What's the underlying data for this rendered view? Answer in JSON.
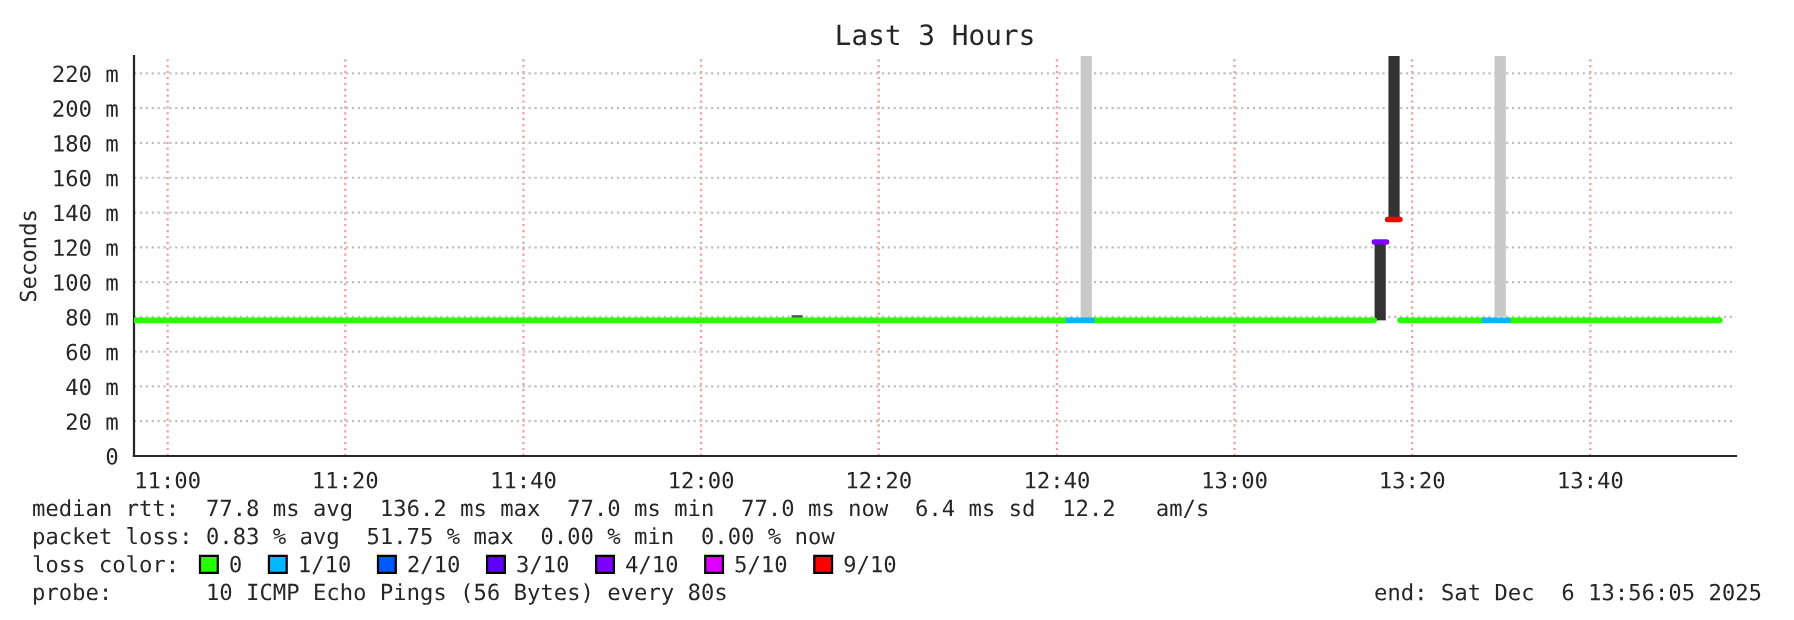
{
  "chart_data": {
    "type": "line",
    "title": "Last 3 Hours",
    "ylabel": "Seconds",
    "xlim": [
      10.937,
      13.94
    ],
    "ylim": [
      0,
      230
    ],
    "xticks": [
      {
        "value": 11,
        "label": "11:00"
      },
      {
        "value": 11.333,
        "label": "11:20"
      },
      {
        "value": 11.667,
        "label": "11:40"
      },
      {
        "value": 12,
        "label": "12:00"
      },
      {
        "value": 12.333,
        "label": "12:20"
      },
      {
        "value": 12.667,
        "label": "12:40"
      },
      {
        "value": 13,
        "label": "13:00"
      },
      {
        "value": 13.333,
        "label": "13:20"
      },
      {
        "value": 13.667,
        "label": "13:40"
      }
    ],
    "yticks": [
      0,
      {
        "value": 20,
        "label": "20 m"
      },
      {
        "value": 40,
        "label": "40 m"
      },
      {
        "value": 60,
        "label": "60 m"
      },
      {
        "value": 80,
        "label": "80 m"
      },
      {
        "value": 100,
        "label": "100 m"
      },
      {
        "value": 120,
        "label": "120 m"
      },
      {
        "value": 140,
        "label": "140 m"
      },
      {
        "value": 160,
        "label": "160 m"
      },
      {
        "value": 180,
        "label": "180 m"
      },
      {
        "value": 200,
        "label": "200 m"
      },
      {
        "value": 220,
        "label": "220 m"
      }
    ],
    "grid": true,
    "legend": "bottom",
    "legend_title": "loss color:",
    "series": [
      {
        "type": "bar",
        "x": [
          12.18,
          12.722,
          13.273,
          13.299,
          13.498
        ],
        "base": [
          78,
          78,
          78,
          137,
          80
        ],
        "values": [
          3,
          152,
          45,
          93,
          150
        ],
        "colors": [
          "#555555",
          "#c8c8c8",
          "#333333",
          "#333333",
          "#c8c8c8"
        ]
      },
      {
        "name": "0",
        "color": "#26ff00",
        "x": [
          10.937,
          12.688,
          12.7,
          12.733,
          13.262,
          13.27,
          13.31,
          13.468,
          13.48,
          13.513,
          13.91
        ],
        "values": [
          78,
          78,
          null,
          78,
          78,
          null,
          78,
          78,
          null,
          78,
          78
        ]
      },
      {
        "name": "1/10",
        "color": "#00b8ff",
        "x": [
          12.688,
          12.733,
          12.74,
          13.468,
          13.513
        ],
        "values": [
          78,
          78,
          null,
          78,
          78
        ]
      },
      {
        "name": "2/10",
        "color": "#0059ff"
      },
      {
        "name": "3/10",
        "color": "#5e00ff"
      },
      {
        "name": "4/10",
        "color": "#7e00ff",
        "x": [
          13.262,
          13.285
        ],
        "values": [
          123,
          123
        ]
      },
      {
        "name": "5/10",
        "color": "#dd00ff"
      },
      {
        "name": "9/10",
        "color": "#ff0000",
        "x": [
          13.287,
          13.31
        ],
        "values": [
          136,
          136
        ]
      }
    ],
    "annotations": [
      "median rtt:  77.8 ms avg  136.2 ms max  77.0 ms min  77.0 ms now  6.4 ms sd  12.2   am/s",
      "packet loss: 0.83 % avg  51.75 % max  0.00 % min  0.00 % now",
      "probe:       10 ICMP Echo Pings (56 Bytes) every 80s",
      "end: Sat Dec  6 13:56:05 2025"
    ]
  }
}
